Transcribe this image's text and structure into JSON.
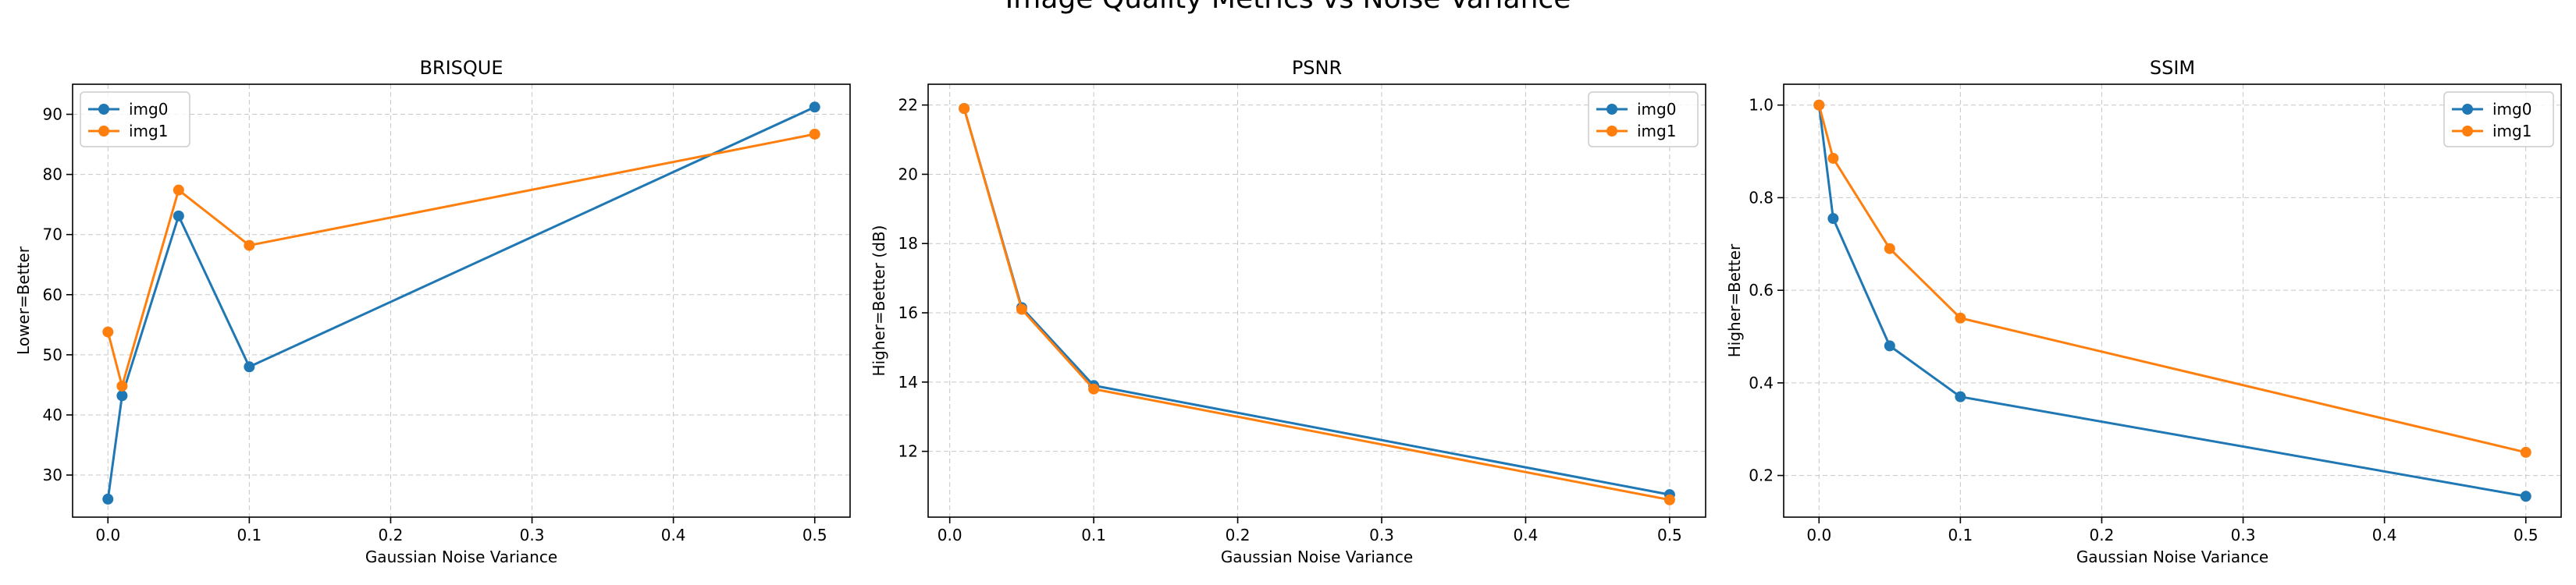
{
  "figure": {
    "title": "Image Quality Metrics vs Noise Variance"
  },
  "colors": {
    "img0": "#1f77b4",
    "img1": "#ff7f0e"
  },
  "chart_data": [
    {
      "type": "line",
      "title": "BRISQUE",
      "xlabel": "Gaussian Noise Variance",
      "ylabel": "Lower=Better",
      "xlim": [
        -0.025,
        0.525
      ],
      "ylim": [
        23,
        95
      ],
      "xticks": [
        0.0,
        0.1,
        0.2,
        0.3,
        0.4,
        0.5
      ],
      "xtick_labels": [
        "0.0",
        "0.1",
        "0.2",
        "0.3",
        "0.4",
        "0.5"
      ],
      "yticks": [
        30,
        40,
        50,
        60,
        70,
        80,
        90
      ],
      "ytick_labels": [
        "30",
        "40",
        "50",
        "60",
        "70",
        "80",
        "90"
      ],
      "grid": true,
      "legend_position": "top-left",
      "series": [
        {
          "name": "img0",
          "color": "#1f77b4",
          "x": [
            0.0,
            0.01,
            0.05,
            0.1,
            0.5
          ],
          "y": [
            26.0,
            43.2,
            73.1,
            48.0,
            91.2
          ]
        },
        {
          "name": "img1",
          "color": "#ff7f0e",
          "x": [
            0.0,
            0.01,
            0.05,
            0.1,
            0.5
          ],
          "y": [
            53.8,
            44.8,
            77.4,
            68.2,
            86.7
          ]
        }
      ]
    },
    {
      "type": "line",
      "title": "PSNR",
      "xlabel": "Gaussian Noise Variance",
      "ylabel": "Higher=Better (dB)",
      "xlim": [
        -0.015,
        0.525
      ],
      "ylim": [
        10.1,
        22.6
      ],
      "xticks": [
        0.0,
        0.1,
        0.2,
        0.3,
        0.4,
        0.5
      ],
      "xtick_labels": [
        "0.0",
        "0.1",
        "0.2",
        "0.3",
        "0.4",
        "0.5"
      ],
      "yticks": [
        12,
        14,
        16,
        18,
        20,
        22
      ],
      "ytick_labels": [
        "12",
        "14",
        "16",
        "18",
        "20",
        "22"
      ],
      "grid": true,
      "legend_position": "top-right",
      "series": [
        {
          "name": "img0",
          "color": "#1f77b4",
          "x": [
            0.01,
            0.05,
            0.1,
            0.5
          ],
          "y": [
            21.9,
            16.15,
            13.9,
            10.75
          ]
        },
        {
          "name": "img1",
          "color": "#ff7f0e",
          "x": [
            0.01,
            0.05,
            0.1,
            0.5
          ],
          "y": [
            21.9,
            16.1,
            13.8,
            10.6
          ]
        }
      ]
    },
    {
      "type": "line",
      "title": "SSIM",
      "xlabel": "Gaussian Noise Variance",
      "ylabel": "Higher=Better",
      "xlim": [
        -0.025,
        0.525
      ],
      "ylim": [
        0.11,
        1.045
      ],
      "xticks": [
        0.0,
        0.1,
        0.2,
        0.3,
        0.4,
        0.5
      ],
      "xtick_labels": [
        "0.0",
        "0.1",
        "0.2",
        "0.3",
        "0.4",
        "0.5"
      ],
      "yticks": [
        0.2,
        0.4,
        0.6,
        0.8,
        1.0
      ],
      "ytick_labels": [
        "0.2",
        "0.4",
        "0.6",
        "0.8",
        "1.0"
      ],
      "grid": true,
      "legend_position": "top-right",
      "series": [
        {
          "name": "img0",
          "color": "#1f77b4",
          "x": [
            0.0,
            0.01,
            0.05,
            0.1,
            0.5
          ],
          "y": [
            1.0,
            0.755,
            0.48,
            0.37,
            0.155
          ]
        },
        {
          "name": "img1",
          "color": "#ff7f0e",
          "x": [
            0.0,
            0.01,
            0.05,
            0.1,
            0.5
          ],
          "y": [
            1.0,
            0.885,
            0.69,
            0.54,
            0.25
          ]
        }
      ]
    }
  ]
}
